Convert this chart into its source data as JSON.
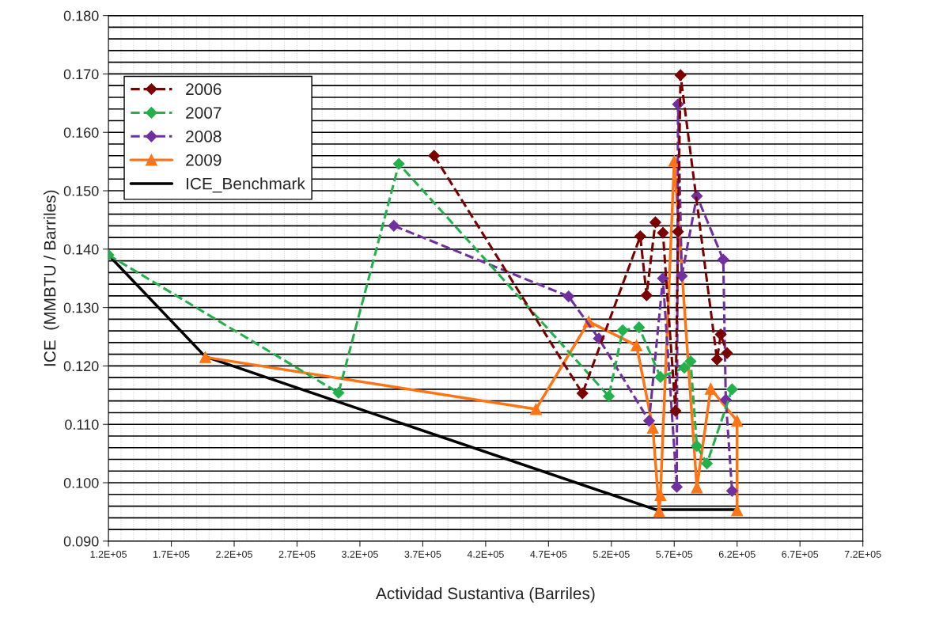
{
  "chart_data": {
    "type": "line",
    "xlabel": "Actividad Sustantiva (Barriles)",
    "ylabel": "ICE  (MMBTU / Barriles)",
    "xlim": [
      120000,
      720000
    ],
    "xticks": [
      {
        "value": 120000,
        "label": "1.2E+05"
      },
      {
        "value": 170000,
        "label": "1.7E+05"
      },
      {
        "value": 220000,
        "label": "2.2E+05"
      },
      {
        "value": 270000,
        "label": "2.7E+05"
      },
      {
        "value": 320000,
        "label": "3.2E+05"
      },
      {
        "value": 370000,
        "label": "3.7E+05"
      },
      {
        "value": 420000,
        "label": "4.2E+05"
      },
      {
        "value": 470000,
        "label": "4.7E+05"
      },
      {
        "value": 520000,
        "label": "5.2E+05"
      },
      {
        "value": 570000,
        "label": "5.7E+05"
      },
      {
        "value": 620000,
        "label": "6.2E+05"
      },
      {
        "value": 670000,
        "label": "6.7E+05"
      },
      {
        "value": 720000,
        "label": "7.2E+05"
      }
    ],
    "ylim": [
      0.09,
      0.18
    ],
    "yticks": [
      {
        "value": 0.09,
        "label": "0.090"
      },
      {
        "value": 0.1,
        "label": "0.100"
      },
      {
        "value": 0.11,
        "label": "0.110"
      },
      {
        "value": 0.12,
        "label": "0.120"
      },
      {
        "value": 0.13,
        "label": "0.130"
      },
      {
        "value": 0.14,
        "label": "0.140"
      },
      {
        "value": 0.15,
        "label": "0.150"
      },
      {
        "value": 0.16,
        "label": "0.160"
      },
      {
        "value": 0.17,
        "label": "0.170"
      },
      {
        "value": 0.18,
        "label": "0.180"
      }
    ],
    "grid": true,
    "legend": "top left",
    "series": [
      {
        "name": "2006",
        "color": "#7b0000",
        "marker": "diamond",
        "line_style": "dashed",
        "x": [
          379000,
          497000,
          543000,
          548000,
          555000,
          561000,
          571000,
          573000,
          575000,
          604000,
          607000,
          612000
        ],
        "values": [
          0.156,
          0.1153,
          0.1422,
          0.1321,
          0.1446,
          0.1428,
          0.1123,
          0.143,
          0.1698,
          0.1211,
          0.1254,
          0.1222
        ]
      },
      {
        "name": "2007",
        "color": "#22b14c",
        "marker": "diamond",
        "line_style": "dashed",
        "x": [
          120000,
          303000,
          351000,
          518000,
          529000,
          542000,
          559000,
          578000,
          583000,
          588000,
          596000,
          616000
        ],
        "values": [
          0.139,
          0.1154,
          0.1546,
          0.1148,
          0.1261,
          0.1266,
          0.1181,
          0.1197,
          0.1208,
          0.1063,
          0.1033,
          0.116
        ]
      },
      {
        "name": "2008",
        "color": "#7030a0",
        "marker": "diamond",
        "line_style": "dashed",
        "x": [
          347000,
          486000,
          510000,
          550000,
          561000,
          572000,
          573000,
          576000,
          588000,
          609000,
          611000,
          616000
        ],
        "values": [
          0.144,
          0.1319,
          0.1247,
          0.1106,
          0.135,
          0.0993,
          0.1648,
          0.1354,
          0.1491,
          0.1382,
          0.1142,
          0.0986
        ]
      },
      {
        "name": "2009",
        "color": "#ff7415",
        "marker": "triangle",
        "line_style": "solid",
        "x": [
          197000,
          460000,
          502000,
          540000,
          553000,
          558000,
          559000,
          570000,
          588000,
          599000,
          620000,
          620000
        ],
        "values": [
          0.1215,
          0.1126,
          0.1276,
          0.1235,
          0.1094,
          0.0951,
          0.0979,
          0.1551,
          0.0992,
          0.1161,
          0.1106,
          0.0953
        ]
      },
      {
        "name": "ICE_Benchmark",
        "color": "#000000",
        "marker": "none",
        "line_style": "solid",
        "x": [
          120000,
          197000,
          555000,
          619000
        ],
        "values": [
          0.139,
          0.1216,
          0.0954,
          0.0954
        ]
      }
    ]
  }
}
